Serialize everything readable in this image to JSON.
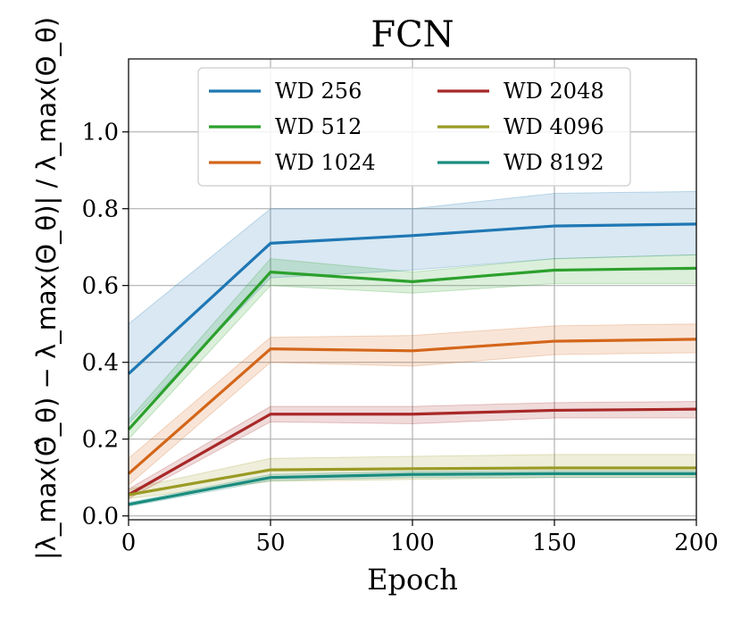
{
  "chart_data": {
    "type": "line",
    "title": "FCN",
    "xlabel": "Epoch",
    "ylabel": "|λ_max(Θ̂_θ) − λ_max(Θ_θ)| / λ_max(Θ_θ)",
    "xlim": [
      0,
      200
    ],
    "ylim": [
      -0.01,
      1.19
    ],
    "xticks": [
      0,
      50,
      100,
      150,
      200
    ],
    "yticks": [
      0.0,
      0.2,
      0.4,
      0.6,
      0.8,
      1.0
    ],
    "xtick_labels": [
      "0",
      "50",
      "100",
      "150",
      "200"
    ],
    "ytick_labels": [
      "0.0",
      "0.2",
      "0.4",
      "0.6",
      "0.8",
      "1.0"
    ],
    "grid": true,
    "legend": {
      "placement": "top-center",
      "columns": 2
    },
    "x": [
      0,
      50,
      100,
      150,
      200
    ],
    "series": [
      {
        "name": "WD 256",
        "color": "#1f77b4",
        "values": [
          0.37,
          0.71,
          0.73,
          0.755,
          0.76
        ],
        "lower": [
          0.24,
          0.62,
          0.64,
          0.67,
          0.68
        ],
        "upper": [
          0.5,
          0.8,
          0.8,
          0.84,
          0.845
        ]
      },
      {
        "name": "WD 512",
        "color": "#2ca02c",
        "values": [
          0.225,
          0.635,
          0.61,
          0.64,
          0.645
        ],
        "lower": [
          0.2,
          0.6,
          0.58,
          0.605,
          0.605
        ],
        "upper": [
          0.25,
          0.67,
          0.635,
          0.67,
          0.68
        ]
      },
      {
        "name": "WD 1024",
        "color": "#d4661a",
        "values": [
          0.11,
          0.435,
          0.43,
          0.455,
          0.46
        ],
        "lower": [
          0.08,
          0.4,
          0.39,
          0.42,
          0.425
        ],
        "upper": [
          0.15,
          0.465,
          0.47,
          0.495,
          0.5
        ]
      },
      {
        "name": "WD 2048",
        "color": "#a82828",
        "values": [
          0.055,
          0.265,
          0.265,
          0.275,
          0.278
        ],
        "lower": [
          0.045,
          0.245,
          0.24,
          0.255,
          0.255
        ],
        "upper": [
          0.07,
          0.285,
          0.285,
          0.295,
          0.298
        ]
      },
      {
        "name": "WD 4096",
        "color": "#9a9a24",
        "values": [
          0.055,
          0.12,
          0.123,
          0.125,
          0.125
        ],
        "lower": [
          0.045,
          0.09,
          0.095,
          0.1,
          0.1
        ],
        "upper": [
          0.07,
          0.15,
          0.155,
          0.16,
          0.16
        ]
      },
      {
        "name": "WD 8192",
        "color": "#1a8c7f",
        "values": [
          0.03,
          0.1,
          0.108,
          0.11,
          0.11
        ],
        "lower": [
          0.025,
          0.092,
          0.1,
          0.1,
          0.1
        ],
        "upper": [
          0.035,
          0.108,
          0.116,
          0.118,
          0.118
        ]
      }
    ]
  }
}
